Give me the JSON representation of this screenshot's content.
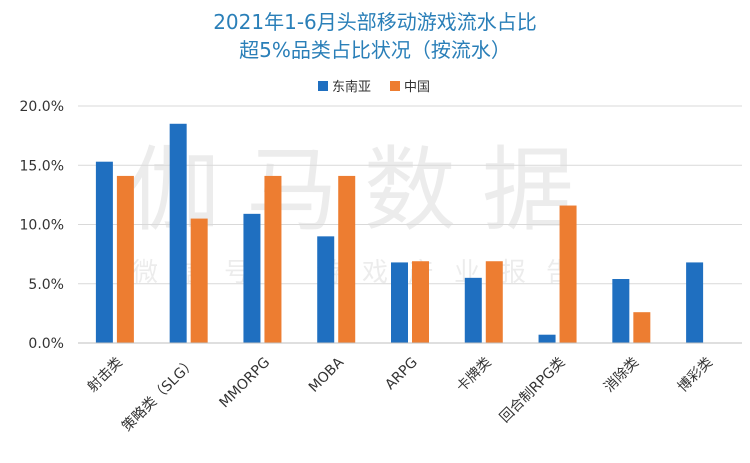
{
  "watermark": {
    "main": "伽马数据",
    "sub": "微信号：游戏产业报告"
  },
  "colors": {
    "title": "#2a7fb8",
    "series_southeast_asia": "#1f6fc0",
    "series_china": "#ed7d31",
    "grid": "#d9d9d9",
    "text": "#333333"
  },
  "chart_data": {
    "type": "bar",
    "title": "2021年1-6月头部移动游戏流水占比",
    "subtitle": "超5%品类占比状况（按流水）",
    "xlabel": "",
    "ylabel": "",
    "categories": [
      "射击类",
      "策略类（SLG）",
      "MMORPG",
      "MOBA",
      "ARPG",
      "卡牌类",
      "回合制RPG类",
      "消除类",
      "博彩类"
    ],
    "series": [
      {
        "name": "东南亚",
        "values": [
          15.3,
          18.5,
          10.9,
          9.0,
          6.8,
          5.5,
          0.7,
          5.4,
          6.8
        ]
      },
      {
        "name": "中国",
        "values": [
          14.1,
          10.5,
          14.1,
          14.1,
          6.9,
          6.9,
          11.6,
          2.6,
          null
        ]
      }
    ],
    "ylim": [
      0,
      20
    ],
    "yticks": [
      "0.0%",
      "5.0%",
      "10.0%",
      "15.0%",
      "20.0%"
    ],
    "grid": true,
    "legend_position": "top-center"
  }
}
